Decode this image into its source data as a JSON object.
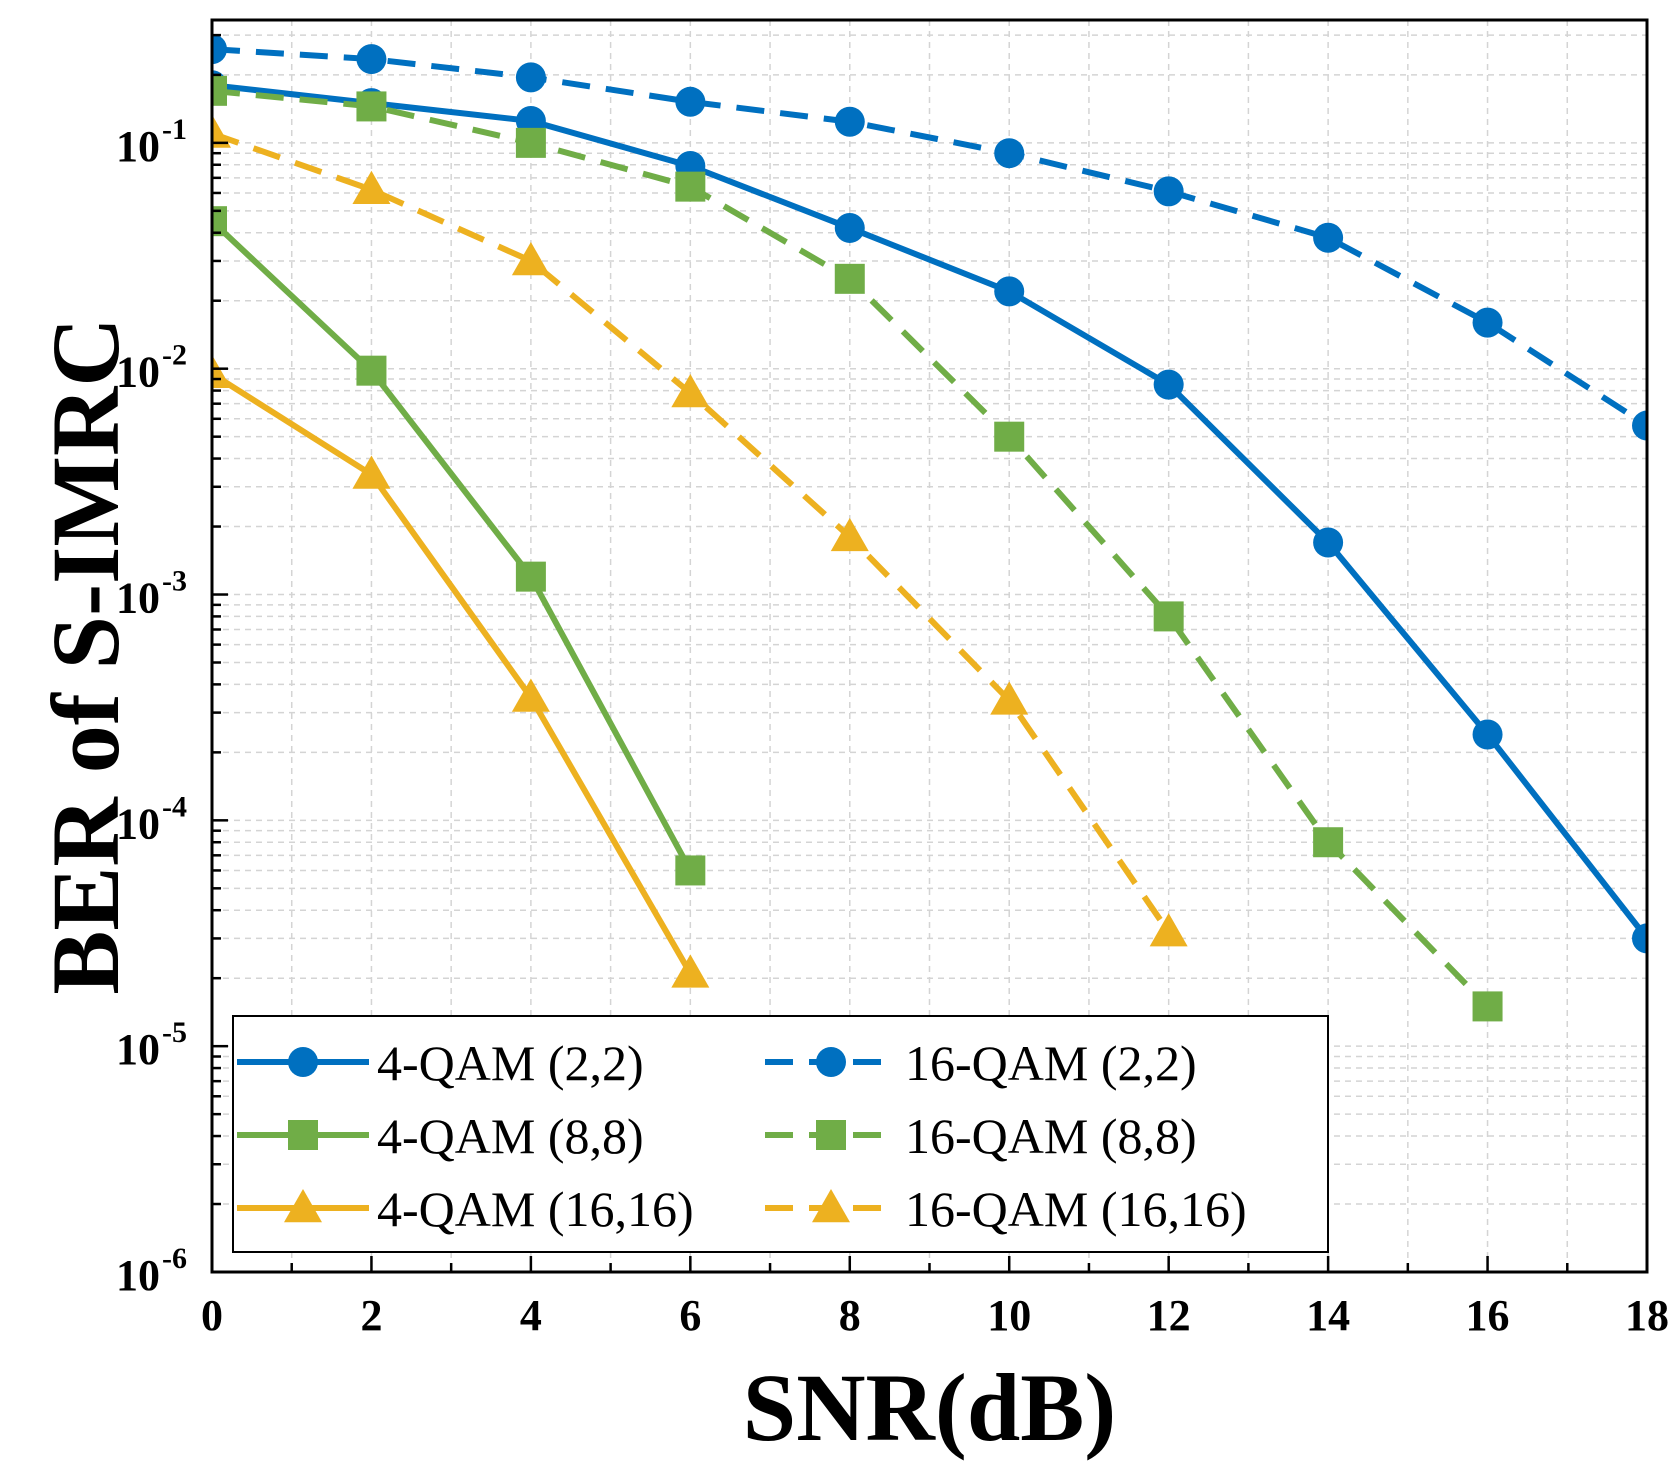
{
  "chart_data": {
    "type": "line",
    "title": "",
    "xlabel": "SNR(dB)",
    "ylabel": "BER of S-IMRC",
    "xlim": [
      0,
      18
    ],
    "ylim": [
      1e-06,
      0.35
    ],
    "yscale": "log",
    "grid": true,
    "x_ticks": [
      0,
      2,
      4,
      6,
      8,
      10,
      12,
      14,
      16,
      18
    ],
    "x_tick_labels": [
      "0",
      "2",
      "4",
      "6",
      "8",
      "10",
      "12",
      "14",
      "16",
      "18"
    ],
    "y_ticks": [
      {
        "value": 0.1,
        "base": "10",
        "exp": "-1"
      },
      {
        "value": 0.01,
        "base": "10",
        "exp": "-2"
      },
      {
        "value": 0.001,
        "base": "10",
        "exp": "-3"
      },
      {
        "value": 0.0001,
        "base": "10",
        "exp": "-4"
      },
      {
        "value": 1e-05,
        "base": "10",
        "exp": "-5"
      },
      {
        "value": 1e-06,
        "base": "10",
        "exp": "-6"
      }
    ],
    "legend_position": "bottom-left",
    "series": [
      {
        "name": "4-QAM (2,2)",
        "color": "#0070C0",
        "dash": "solid",
        "marker": "circle",
        "x": [
          0,
          2,
          4,
          6,
          8,
          10,
          12,
          14,
          16,
          18
        ],
        "values": [
          0.18,
          0.15,
          0.125,
          0.079,
          0.042,
          0.022,
          0.0085,
          0.0017,
          0.00024,
          3e-05
        ]
      },
      {
        "name": "16-QAM (2,2)",
        "color": "#0070C0",
        "dash": "dashed",
        "marker": "circle",
        "x": [
          0,
          2,
          4,
          6,
          8,
          10,
          12,
          14,
          16,
          18
        ],
        "values": [
          0.26,
          0.235,
          0.195,
          0.152,
          0.124,
          0.09,
          0.061,
          0.038,
          0.016,
          0.0056
        ]
      },
      {
        "name": "4-QAM (8,8)",
        "color": "#70AD47",
        "dash": "solid",
        "marker": "square",
        "x": [
          0,
          2,
          4,
          6
        ],
        "values": [
          0.045,
          0.0098,
          0.0012,
          6e-05
        ]
      },
      {
        "name": "16-QAM (8,8)",
        "color": "#70AD47",
        "dash": "dashed",
        "marker": "square",
        "x": [
          0,
          2,
          4,
          6,
          8,
          10,
          12,
          14,
          16
        ],
        "values": [
          0.17,
          0.145,
          0.1,
          0.064,
          0.025,
          0.005,
          0.0008,
          8e-05,
          1.5e-05
        ]
      },
      {
        "name": "4-QAM (16,16)",
        "color": "#EDB120",
        "dash": "solid",
        "marker": "triangle",
        "x": [
          0,
          2,
          4,
          6
        ],
        "values": [
          0.0095,
          0.0034,
          0.00035,
          2.1e-05
        ]
      },
      {
        "name": "16-QAM (16,16)",
        "color": "#EDB120",
        "dash": "dashed",
        "marker": "triangle",
        "x": [
          0,
          2,
          4,
          6,
          8,
          10,
          12
        ],
        "values": [
          0.11,
          0.062,
          0.03,
          0.0078,
          0.0018,
          0.00034,
          3.2e-05
        ]
      }
    ]
  }
}
